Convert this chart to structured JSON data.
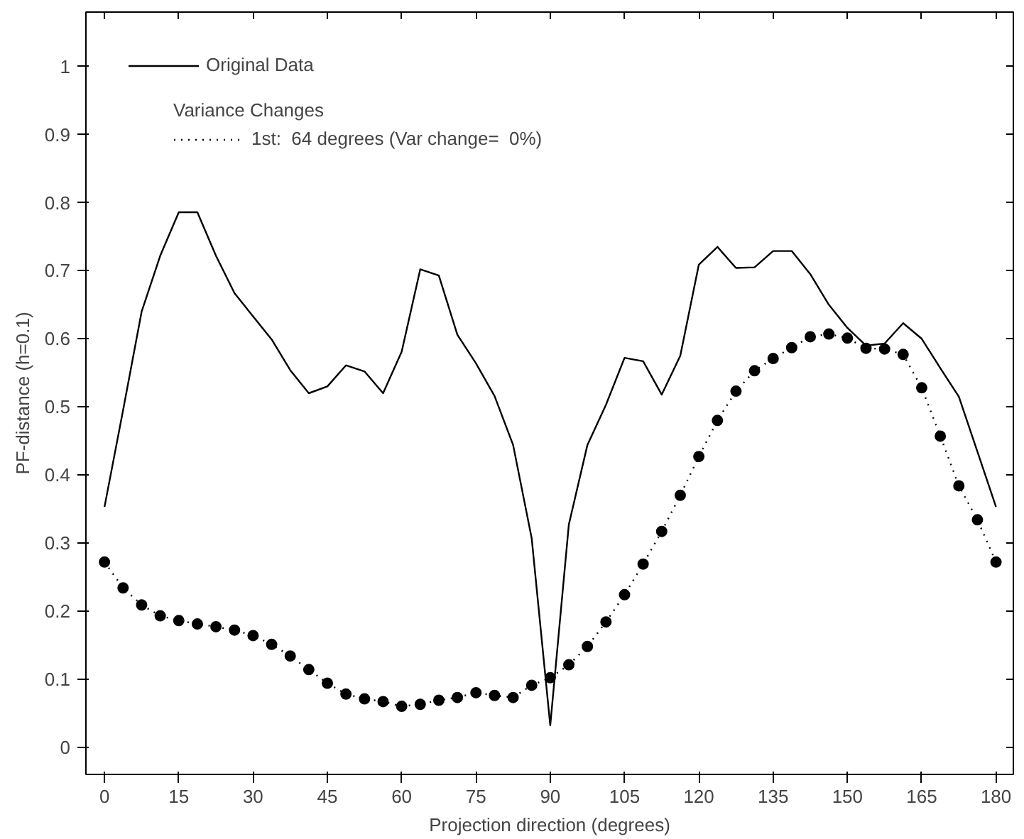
{
  "chart_data": {
    "type": "line",
    "xlabel": "Projection direction (degrees)",
    "ylabel": "PF-distance (h=0.1)",
    "legend_title": "Variance Changes",
    "x": [
      0,
      3.75,
      7.5,
      11.25,
      15,
      18.75,
      22.5,
      26.25,
      30,
      33.75,
      37.5,
      41.25,
      45,
      48.75,
      52.5,
      56.25,
      60,
      63.75,
      67.5,
      71.25,
      75,
      78.75,
      82.5,
      86.25,
      90,
      93.75,
      97.5,
      101.25,
      105,
      108.75,
      112.5,
      116.25,
      120,
      123.75,
      127.5,
      131.25,
      135,
      138.75,
      142.5,
      146.25,
      150,
      153.75,
      157.5,
      161.25,
      165,
      168.75,
      172.5,
      176.25,
      180
    ],
    "series": [
      {
        "name": "Original Data",
        "color": "#000000",
        "marker": "none",
        "line_style": "solid",
        "values": [
          0.353,
          0.495,
          0.64,
          0.722,
          0.786,
          0.786,
          0.722,
          0.667,
          0.633,
          0.599,
          0.554,
          0.52,
          0.53,
          0.561,
          0.552,
          0.52,
          0.581,
          0.702,
          0.693,
          0.606,
          0.564,
          0.516,
          0.444,
          0.307,
          0.032,
          0.327,
          0.444,
          0.503,
          0.572,
          0.567,
          0.518,
          0.575,
          0.709,
          0.735,
          0.704,
          0.705,
          0.729,
          0.729,
          0.695,
          0.65,
          0.616,
          0.59,
          0.593,
          0.623,
          0.6,
          0.557,
          0.515,
          0.434,
          0.353
        ]
      },
      {
        "name": "1st:  64 degrees (Var change=  0%)",
        "color": "#000000",
        "marker": "circle",
        "line_style": "dotted",
        "values": [
          0.272,
          0.234,
          0.209,
          0.193,
          0.186,
          0.181,
          0.177,
          0.172,
          0.164,
          0.151,
          0.134,
          0.114,
          0.094,
          0.078,
          0.071,
          0.067,
          0.06,
          0.063,
          0.069,
          0.073,
          0.08,
          0.076,
          0.073,
          0.091,
          0.102,
          0.121,
          0.148,
          0.184,
          0.224,
          0.269,
          0.317,
          0.37,
          0.427,
          0.48,
          0.523,
          0.553,
          0.571,
          0.587,
          0.603,
          0.607,
          0.601,
          0.586,
          0.585,
          0.577,
          0.528,
          0.457,
          0.384,
          0.334,
          0.272
        ]
      }
    ],
    "xlim": [
      -3.75,
      183.5
    ],
    "ylim": [
      -0.04,
      1.08
    ],
    "xticks": [
      0,
      15,
      30,
      45,
      60,
      75,
      90,
      105,
      120,
      135,
      150,
      165,
      180
    ],
    "yticks": [
      0,
      0.1,
      0.2,
      0.3,
      0.4,
      0.5,
      0.6,
      0.7,
      0.8,
      0.9,
      1
    ],
    "grid": false,
    "legend": "top left"
  }
}
